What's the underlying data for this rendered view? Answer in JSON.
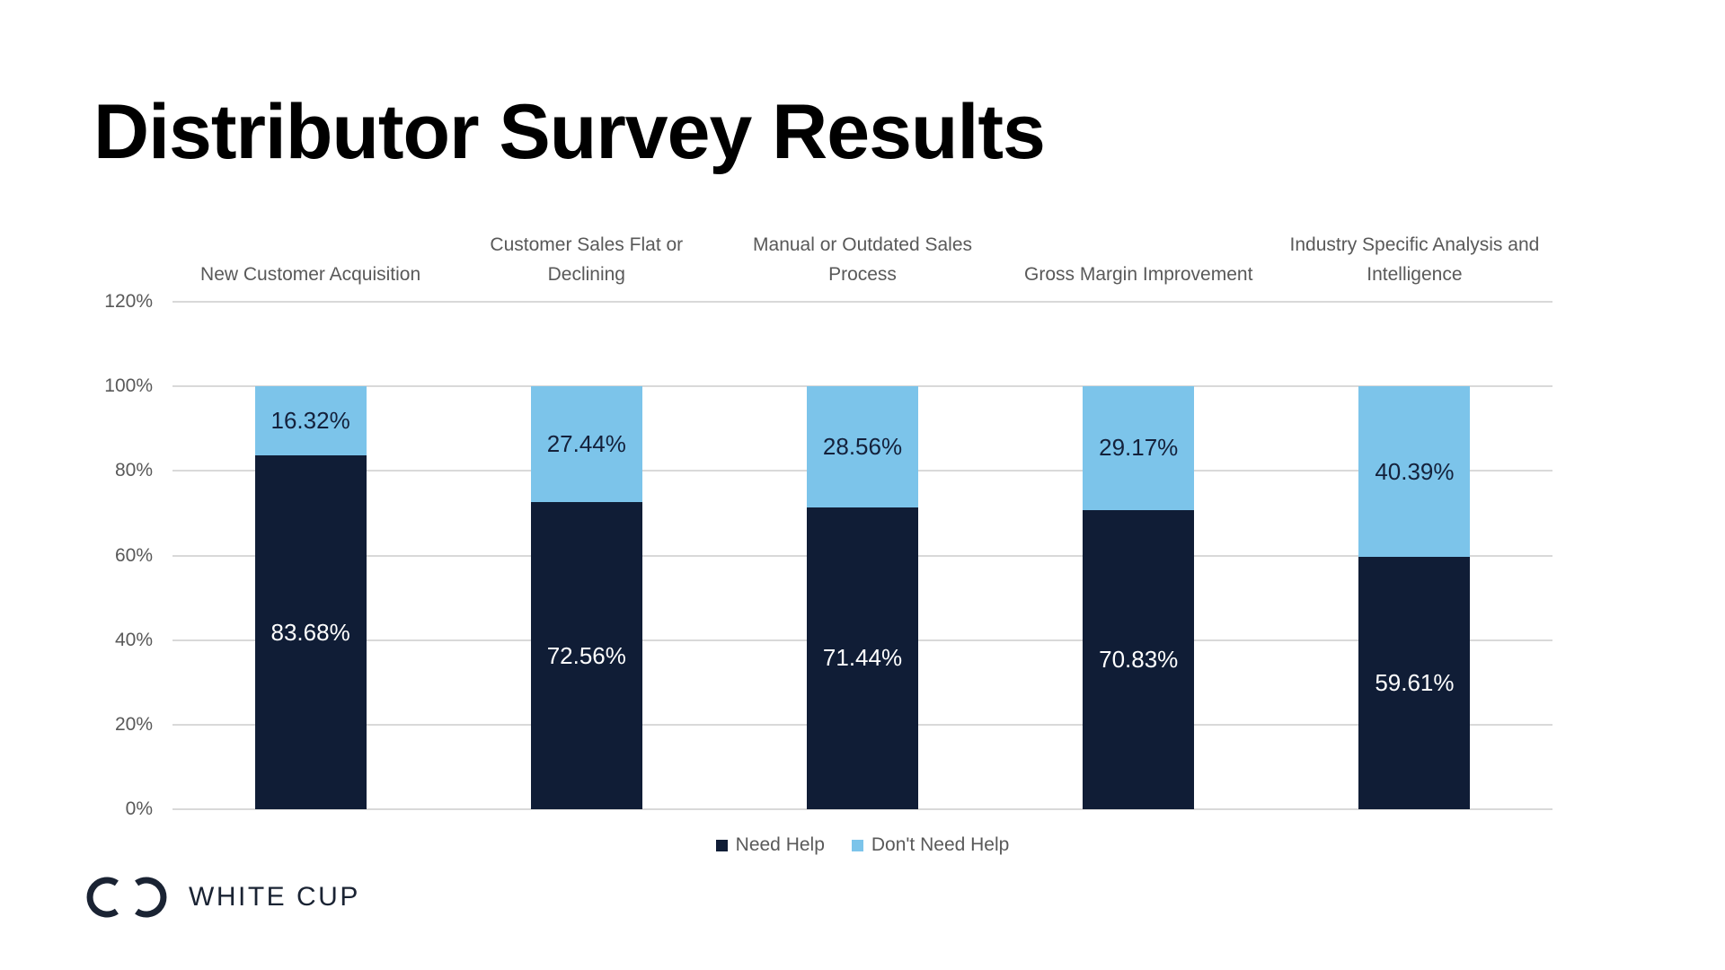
{
  "title": "Distributor Survey Results",
  "logo": {
    "text": "WHITE CUP",
    "icon": "white-cup-rings-icon",
    "color": "#1a2333"
  },
  "colors": {
    "background": "#ffffff",
    "title_text": "#000000",
    "axis_text": "#595959",
    "gridline": "#d9d9d9",
    "need_help_navy": "#101d36",
    "dont_need_help_blue": "#7cc4ea"
  },
  "chart_data": {
    "type": "bar",
    "stacked": true,
    "title": "",
    "xlabel": "",
    "ylabel": "",
    "categories": [
      "New Customer Acquisition",
      "Customer Sales Flat or Declining",
      "Manual or Outdated Sales Process",
      "Gross Margin Improvement",
      "Industry Specific Analysis and Intelligence"
    ],
    "category_label_lines": [
      [
        "New Customer Acquisition"
      ],
      [
        "Customer Sales Flat or",
        "Declining"
      ],
      [
        "Manual or Outdated Sales",
        "Process"
      ],
      [
        "Gross Margin Improvement"
      ],
      [
        "Industry Specific Analysis and",
        "Intelligence"
      ]
    ],
    "series": [
      {
        "name": "Need Help",
        "color": "#101d36",
        "label_color": "#ffffff",
        "values": [
          83.68,
          72.56,
          71.44,
          70.83,
          59.61
        ]
      },
      {
        "name": "Don't Need Help",
        "color": "#7cc4ea",
        "label_color": "#14213b",
        "values": [
          16.32,
          27.44,
          28.56,
          29.17,
          40.39
        ]
      }
    ],
    "value_suffix": "%",
    "y_axis": {
      "min": 0,
      "max": 120,
      "tick_step": 20,
      "tick_labels": [
        "120%",
        "100%",
        "80%",
        "60%",
        "40%",
        "20%",
        "0%"
      ]
    },
    "ylim": [
      0,
      120
    ],
    "grid": true,
    "legend_position": "bottom"
  }
}
